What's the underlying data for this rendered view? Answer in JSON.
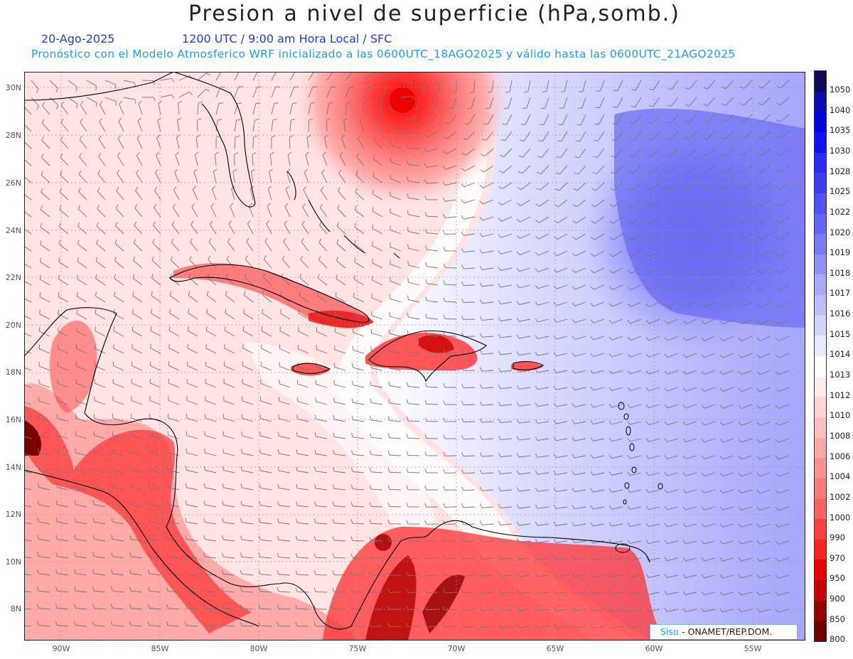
{
  "header": {
    "title": "Presion a nivel de superficie (hPa,somb.)",
    "date": "20-Ago-2025",
    "time": "1200 UTC / 9:00 am Hora Local / SFC",
    "forecast": "Pronóstico con el Modelo Atmosferico WRF inicializado a las 0600UTC_18AGO2025 y válido hasta las  0600UTC_21AGO2025"
  },
  "axes": {
    "lat_labels": [
      "30N",
      "28N",
      "26N",
      "24N",
      "22N",
      "20N",
      "18N",
      "16N",
      "14N",
      "12N",
      "10N",
      "8N"
    ],
    "lon_labels": [
      "90W",
      "85W",
      "80W",
      "75W",
      "70W",
      "65W",
      "60W",
      "55W"
    ]
  },
  "colorbar": {
    "labels": [
      "1050",
      "1040",
      "1035",
      "1030",
      "1028",
      "1025",
      "1022",
      "1020",
      "1019",
      "1018",
      "1017",
      "1016",
      "1015",
      "1014",
      "1013",
      "1012",
      "1010",
      "1008",
      "1006",
      "1004",
      "1002",
      "1000",
      "990",
      "970",
      "950",
      "900",
      "850",
      "800"
    ],
    "colors": [
      "#0a0a5a",
      "#0a0ab4",
      "#0000e6",
      "#0f0fff",
      "#2828ff",
      "#3c3cff",
      "#5050ff",
      "#6464ff",
      "#7a7aff",
      "#9090ff",
      "#a8a8ff",
      "#bebeff",
      "#d4d4ff",
      "#eaeaff",
      "#ffffff",
      "#ffeaea",
      "#ffd4d4",
      "#ffbebe",
      "#ffa8a8",
      "#ff9090",
      "#ff7878",
      "#ff6060",
      "#ff4040",
      "#ff2020",
      "#f00000",
      "#c80000",
      "#9a0000",
      "#6e0000"
    ]
  },
  "logo": {
    "sis": "Sis",
    "pi": "π",
    "org": " - ONAMET/REP.DOM."
  }
}
